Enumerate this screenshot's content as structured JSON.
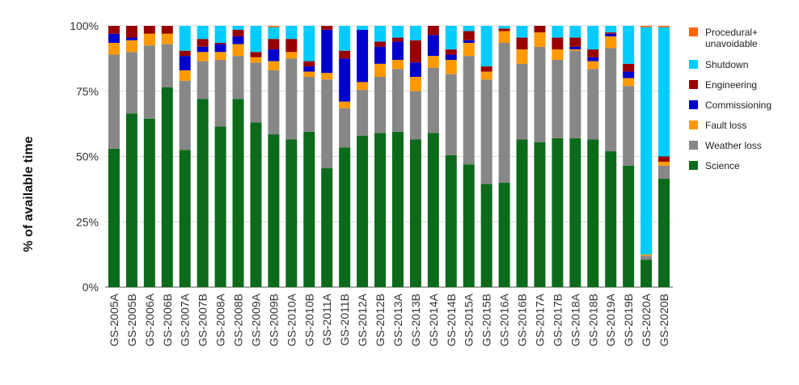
{
  "chart_data": {
    "type": "bar",
    "stacked": true,
    "title": "",
    "xlabel": "",
    "ylabel": "% of available time",
    "ylim": [
      0,
      100
    ],
    "y_ticks": [
      "0%",
      "25%",
      "50%",
      "75%",
      "100%"
    ],
    "grid": "horizontal",
    "legend_position": "right",
    "categories": [
      "GS-2005A",
      "GS-2005B",
      "GS-2006A",
      "GS-2006B",
      "GS-2007A",
      "GS-2007B",
      "GS-2008A",
      "GS-2008B",
      "GS-2009A",
      "GS-2009B",
      "GS-2010A",
      "GS-2010B",
      "GS-2011A",
      "GS-2011B",
      "GS-2012A",
      "GS-2012B",
      "GS-2013A",
      "GS-2013B",
      "GS-2014A",
      "GS-2014B",
      "GS-2015A",
      "GS-2015B",
      "GS-2016A",
      "GS-2016B",
      "GS-2017A",
      "GS-2017B",
      "GS-2018A",
      "GS-2018B",
      "GS-2019A",
      "GS-2019B",
      "GS-2020A",
      "GS-2020B"
    ],
    "series": [
      {
        "name": "Science",
        "color": "#0b6b1a",
        "values": [
          53,
          66.5,
          64.5,
          76.5,
          52.5,
          72,
          61.5,
          72,
          63,
          58.5,
          56.5,
          59.5,
          45.5,
          53.5,
          58,
          59,
          59.5,
          56.5,
          59,
          50.5,
          47,
          39.5,
          40,
          56.5,
          55.5,
          57,
          57,
          56.5,
          52,
          46.5,
          10.5,
          41.5
        ]
      },
      {
        "name": "Weather loss",
        "color": "#878787",
        "values": [
          36,
          23.5,
          28,
          16.5,
          26.5,
          14.5,
          25.5,
          16.5,
          23,
          24.5,
          31,
          21,
          34,
          15,
          17.5,
          21.5,
          24,
          18.5,
          25,
          31,
          41.5,
          40,
          53.5,
          29,
          36.5,
          30,
          33.5,
          27,
          39.5,
          30.5,
          1.5,
          5
        ]
      },
      {
        "name": "Fault loss",
        "color": "#ff9900",
        "values": [
          4.5,
          4.5,
          4.5,
          4,
          4,
          3.5,
          3,
          4.5,
          2,
          3.5,
          2.5,
          2,
          2.5,
          2.5,
          3,
          5,
          3.5,
          5.5,
          4.5,
          5.5,
          5,
          3,
          4.5,
          5.5,
          5.5,
          4,
          0.5,
          3,
          4.5,
          3,
          0.5,
          1.5
        ]
      },
      {
        "name": "Commissioning",
        "color": "#0000cc",
        "values": [
          3.5,
          1,
          0,
          0,
          5.5,
          2,
          3,
          3,
          0,
          4.5,
          0,
          2,
          16.5,
          16.5,
          20,
          6.5,
          7,
          5.5,
          8,
          2,
          1,
          0,
          0,
          0,
          0,
          0,
          1,
          1.5,
          1,
          2.5,
          0,
          0
        ]
      },
      {
        "name": "Engineering",
        "color": "#990000",
        "values": [
          3,
          4.5,
          3,
          3,
          2,
          3,
          0.5,
          2.5,
          2,
          4,
          5,
          2,
          1.5,
          3,
          0,
          2,
          1.5,
          8.5,
          3.5,
          2,
          3.5,
          2,
          1,
          4.5,
          2.5,
          4.5,
          3.5,
          3,
          0.5,
          3,
          0,
          2
        ]
      },
      {
        "name": "Shutdown",
        "color": "#00ccff",
        "values": [
          0,
          0,
          0,
          0,
          9.5,
          5,
          6.5,
          1.5,
          10,
          4.5,
          5,
          13.5,
          0,
          9.5,
          1.5,
          6,
          4.5,
          5.5,
          0,
          9,
          2,
          15.5,
          1,
          4.5,
          0,
          4.5,
          4.5,
          9,
          2.5,
          14.5,
          87,
          49.5
        ]
      },
      {
        "name": "Procedural+ unavoidable",
        "color": "#ff6600",
        "values": [
          0,
          0,
          0,
          0,
          0,
          0,
          0,
          0,
          0,
          0.5,
          0,
          0,
          0,
          0,
          0,
          0,
          0,
          0,
          0,
          0,
          0,
          0,
          0,
          0,
          0,
          0,
          0,
          0,
          0,
          0,
          0.5,
          0.5
        ]
      }
    ],
    "legend_order": [
      "Procedural+ unavoidable",
      "Shutdown",
      "Engineering",
      "Commissioning",
      "Fault loss",
      "Weather loss",
      "Science"
    ]
  }
}
